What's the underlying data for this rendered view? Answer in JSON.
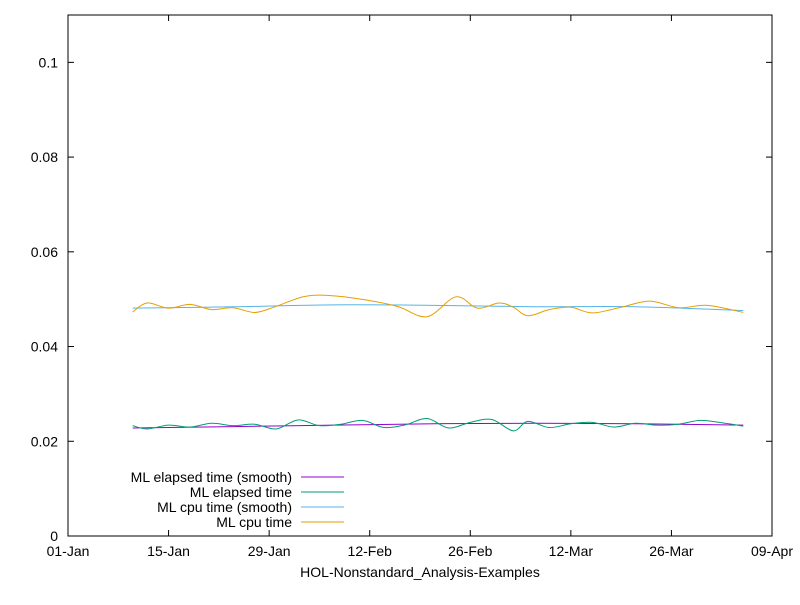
{
  "chart_data": {
    "type": "line",
    "title": "",
    "xlabel": "HOL-Nonstandard_Analysis-Examples",
    "ylabel": "",
    "xlim": [
      "01-Jan",
      "09-Apr"
    ],
    "ylim": [
      0,
      0.11
    ],
    "x_ticks": [
      "01-Jan",
      "15-Jan",
      "29-Jan",
      "12-Feb",
      "26-Feb",
      "12-Mar",
      "26-Mar",
      "09-Apr"
    ],
    "y_ticks": [
      "0",
      "0.02",
      "0.04",
      "0.06",
      "0.08",
      "0.1"
    ],
    "grid": false,
    "legend_position": "bottom-left",
    "series": [
      {
        "name": "ML elapsed time (smooth)",
        "color": "#9400d3",
        "x": [
          "2013-01-10",
          "2013-01-24",
          "2013-02-07",
          "2013-02-21",
          "2013-03-07",
          "2013-03-21",
          "2013-04-05"
        ],
        "y": [
          0.0228,
          0.0231,
          0.0234,
          0.0237,
          0.0238,
          0.0237,
          0.0234
        ]
      },
      {
        "name": "ML elapsed time",
        "color": "#009e73",
        "x": [
          "2013-01-10",
          "2013-01-12",
          "2013-01-15",
          "2013-01-18",
          "2013-01-21",
          "2013-01-24",
          "2013-01-27",
          "2013-01-30",
          "2013-02-02",
          "2013-02-05",
          "2013-02-08",
          "2013-02-11",
          "2013-02-14",
          "2013-02-17",
          "2013-02-20",
          "2013-02-23",
          "2013-02-26",
          "2013-03-01",
          "2013-03-04",
          "2013-03-06",
          "2013-03-09",
          "2013-03-12",
          "2013-03-15",
          "2013-03-18",
          "2013-03-21",
          "2013-03-24",
          "2013-03-27",
          "2013-03-30",
          "2013-04-02",
          "2013-04-05"
        ],
        "y": [
          0.0233,
          0.0226,
          0.0234,
          0.023,
          0.0238,
          0.0233,
          0.0236,
          0.0226,
          0.0245,
          0.0233,
          0.0236,
          0.0244,
          0.0229,
          0.0235,
          0.0248,
          0.0228,
          0.024,
          0.0246,
          0.0222,
          0.0242,
          0.0229,
          0.0237,
          0.024,
          0.023,
          0.0238,
          0.0234,
          0.0236,
          0.0244,
          0.0239,
          0.0232
        ]
      },
      {
        "name": "ML cpu time (smooth)",
        "color": "#56b4e9",
        "x": [
          "2013-01-10",
          "2013-01-24",
          "2013-02-07",
          "2013-02-21",
          "2013-03-07",
          "2013-03-21",
          "2013-04-05"
        ],
        "y": [
          0.0481,
          0.0484,
          0.0488,
          0.0487,
          0.0484,
          0.0484,
          0.0476
        ]
      },
      {
        "name": "ML cpu time",
        "color": "#e69f00",
        "x": [
          "2013-01-10",
          "2013-01-12",
          "2013-01-15",
          "2013-01-18",
          "2013-01-21",
          "2013-01-24",
          "2013-01-27",
          "2013-01-30",
          "2013-02-03",
          "2013-02-07",
          "2013-02-12",
          "2013-02-16",
          "2013-02-20",
          "2013-02-24",
          "2013-02-27",
          "2013-03-02",
          "2013-03-04",
          "2013-03-06",
          "2013-03-09",
          "2013-03-12",
          "2013-03-15",
          "2013-03-19",
          "2013-03-23",
          "2013-03-27",
          "2013-03-31",
          "2013-04-05"
        ],
        "y": [
          0.0473,
          0.0492,
          0.0481,
          0.0489,
          0.0478,
          0.0482,
          0.0472,
          0.0485,
          0.0506,
          0.0507,
          0.0497,
          0.0484,
          0.0463,
          0.0505,
          0.0481,
          0.0492,
          0.0483,
          0.0465,
          0.0478,
          0.0483,
          0.0471,
          0.0483,
          0.0496,
          0.0482,
          0.0487,
          0.0472
        ]
      }
    ]
  }
}
